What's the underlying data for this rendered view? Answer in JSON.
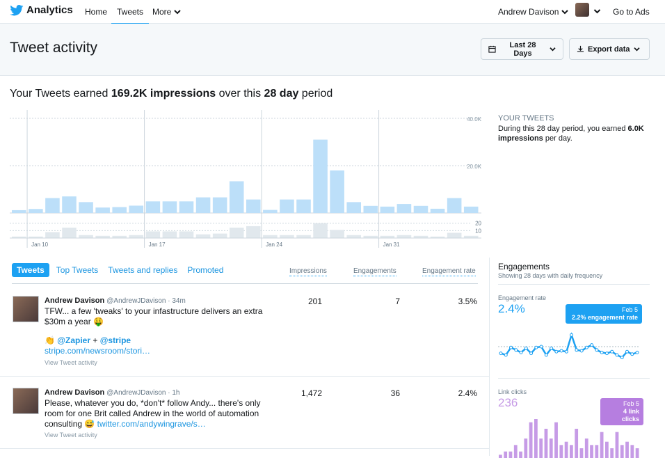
{
  "nav": {
    "brand": "Analytics",
    "links": [
      "Home",
      "Tweets",
      "More"
    ],
    "user_name": "Andrew Davison",
    "go_to_ads": "Go to Ads"
  },
  "header": {
    "title": "Tweet activity",
    "date_range": "Last 28 Days",
    "export": "Export data"
  },
  "summary": {
    "prefix": "Your Tweets earned ",
    "impressions": "169.2K impressions",
    "mid": " over this ",
    "period": "28 day",
    "suffix": " period"
  },
  "side": {
    "title": "YOUR TWEETS",
    "text_a": "During this 28 day period, you earned ",
    "text_b": "6.0K impressions",
    "text_c": " per day."
  },
  "tabs": [
    "Tweets",
    "Top Tweets",
    "Tweets and replies",
    "Promoted"
  ],
  "columns": [
    "Impressions",
    "Engagements",
    "Engagement rate"
  ],
  "tweets": [
    {
      "name": "Andrew Davison",
      "handle": "@AndrewJDavison · 34m",
      "line1": "TFW... a few 'tweaks' to your infastructure delivers an extra $30m a year 🤑",
      "line2a": "👏 ",
      "line2b": "@Zapier",
      "line2c": " + ",
      "line2d": "@stripe",
      "line3": "stripe.com/newsroom/stori…",
      "view": "View Tweet activity",
      "impressions": "201",
      "engagements": "7",
      "rate": "3.5%"
    },
    {
      "name": "Andrew Davison",
      "handle": "@AndrewJDavison · 1h",
      "line1": "Please, whatever you do, *don't* follow Andy... there's only room for one Brit called Andrew in the world of automation consulting 😅 ",
      "line1link": "twitter.com/andywingrave/s…",
      "view": "View Tweet activity",
      "impressions": "1,472",
      "engagements": "36",
      "rate": "2.4%"
    }
  ],
  "engagements": {
    "title": "Engagements",
    "subtitle": "Showing 28 days with daily frequency",
    "rate_label": "Engagement rate",
    "rate_value": "2.4%",
    "rate_tip_date": "Feb 5",
    "rate_tip_text": "2.2% engagement rate",
    "clicks_label": "Link clicks",
    "clicks_value": "236",
    "clicks_tip_date": "Feb 5",
    "clicks_tip_text": "4 link clicks"
  },
  "colors": {
    "blue": "#1da1f2",
    "purple": "#c69be6",
    "bar": "#bcdff9",
    "gray": "#e1e8ed"
  },
  "chart_data": {
    "type": "bar",
    "title": "Impressions",
    "x_ticks": [
      "Jan 10",
      "Jan 17",
      "Jan 24",
      "Jan 31"
    ],
    "y_ticks": [
      "40.0K",
      "20.0K"
    ],
    "ylim": [
      0,
      40000
    ],
    "impressions": [
      1200,
      1700,
      6300,
      7000,
      4600,
      2300,
      2500,
      3100,
      4900,
      4900,
      4900,
      6600,
      6600,
      13400,
      5700,
      1300,
      5700,
      5700,
      31000,
      18000,
      4600,
      3000,
      2700,
      3800,
      3000,
      1800,
      6300,
      2700
    ],
    "secondary_ticks": [
      "20",
      "10"
    ],
    "secondary_ylim": [
      0,
      30
    ],
    "tweets_per_day": [
      2,
      2,
      8,
      14,
      4,
      3,
      3,
      4,
      9,
      9,
      9,
      5,
      6,
      14,
      16,
      4,
      4,
      4,
      20,
      11,
      4,
      3,
      3,
      4,
      3,
      2,
      7,
      3
    ],
    "engagement_rate_series": [
      1.2,
      1.0,
      1.9,
      1.6,
      1.3,
      1.8,
      1.2,
      1.9,
      2.0,
      1.0,
      1.8,
      1.4,
      1.5,
      1.4,
      3.4,
      1.6,
      1.5,
      1.9,
      2.2,
      1.6,
      1.3,
      1.2,
      1.4,
      1.0,
      0.7,
      1.4,
      1.1,
      1.3
    ],
    "link_clicks_series": [
      1,
      2,
      2,
      4,
      2,
      6,
      11,
      12,
      6,
      9,
      6,
      11,
      4,
      5,
      4,
      9,
      3,
      6,
      4,
      4,
      8,
      5,
      3,
      8,
      4,
      5,
      4,
      3
    ]
  }
}
